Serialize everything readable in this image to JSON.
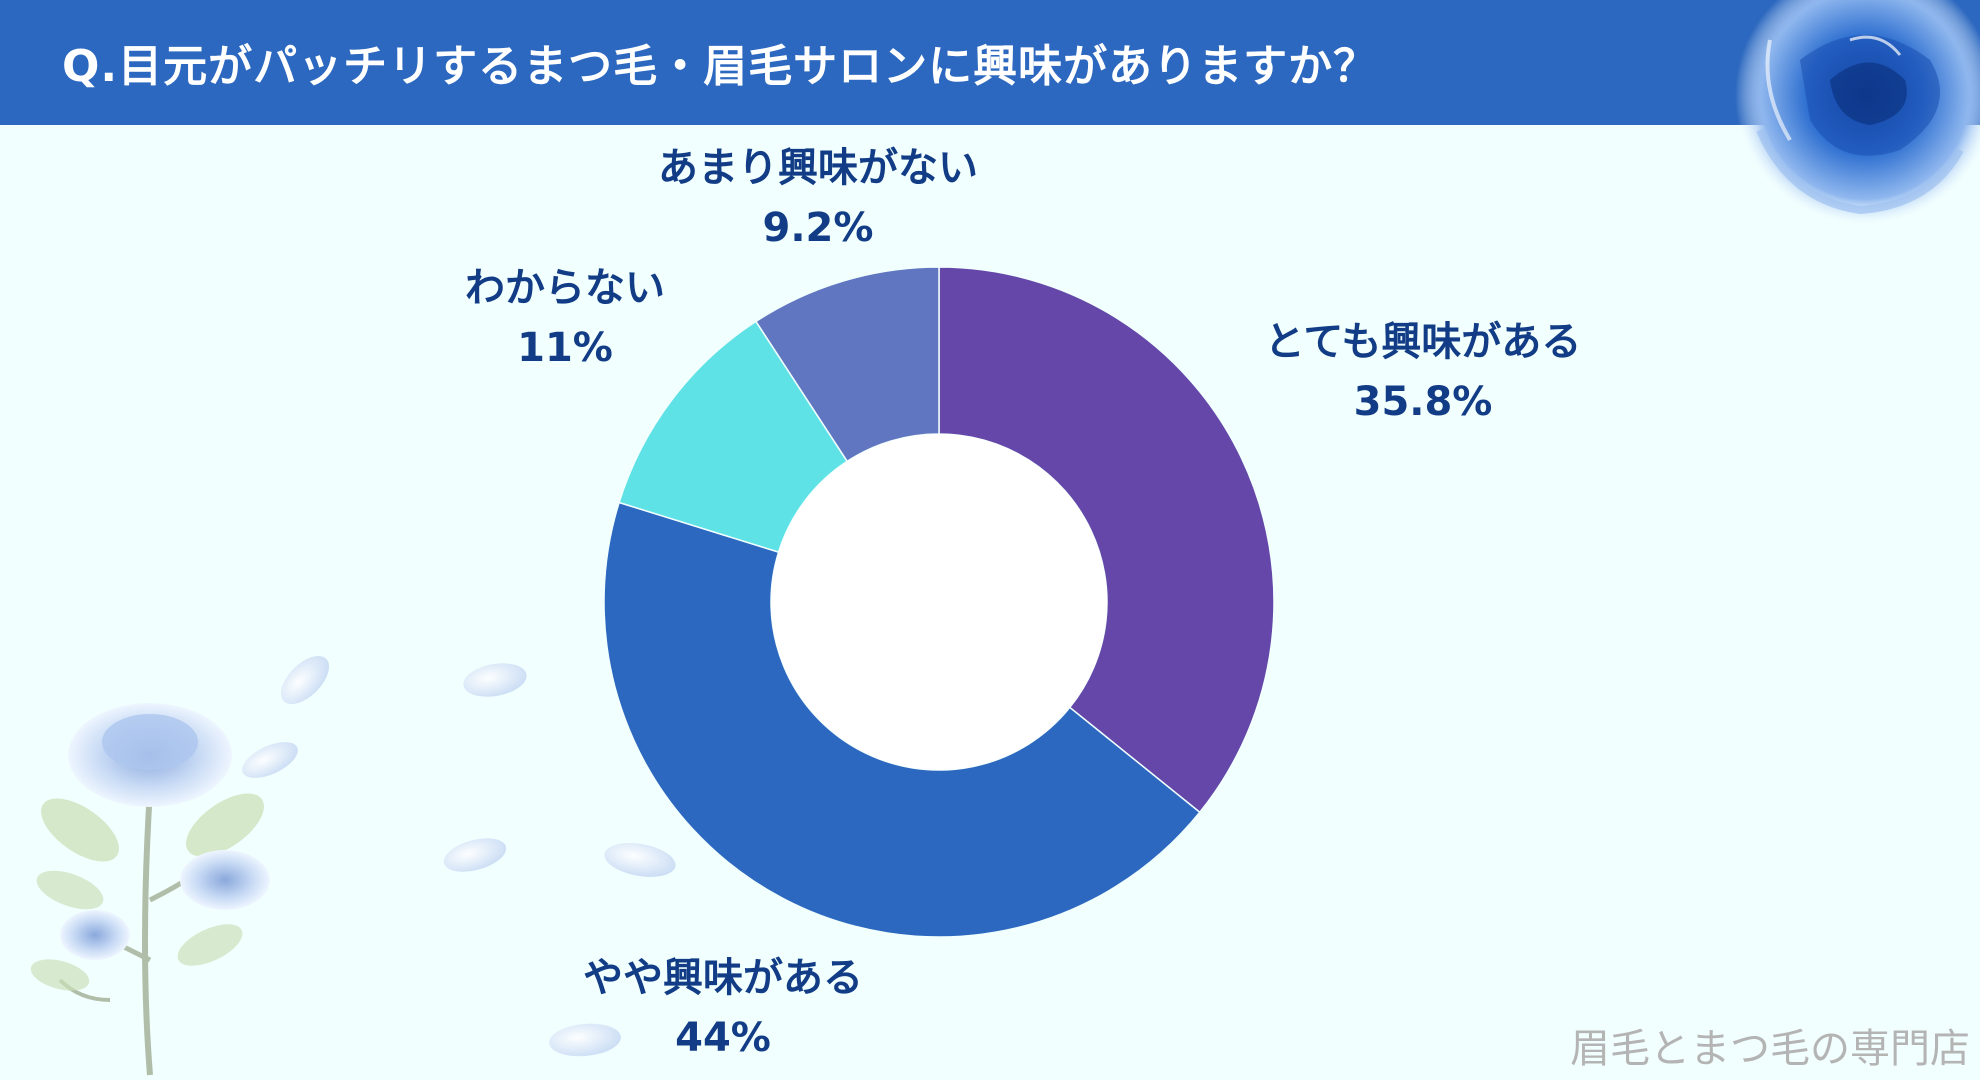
{
  "title": "Q.目元がパッチリするまつ毛・眉毛サロンに興味がありますか？",
  "watermark": "眉毛とまつ毛の専門店",
  "colors": {
    "header": "#2c68bf",
    "background": "#f1fffe",
    "label": "#123d86"
  },
  "chart_data": {
    "type": "pie",
    "donut": true,
    "slices": [
      {
        "label": "とても興味がある",
        "value": 35.8,
        "value_text": "35.8%",
        "color": "#6447a8"
      },
      {
        "label": "やや興味がある",
        "value": 44,
        "value_text": "44%",
        "color": "#2c68bf"
      },
      {
        "label": "わからない",
        "value": 11,
        "value_text": "11%",
        "color": "#5ee2e6"
      },
      {
        "label": "あまり興味がない",
        "value": 9.2,
        "value_text": "9.2%",
        "color": "#6176c0"
      }
    ],
    "start_angle": "12 o'clock",
    "direction": "clockwise"
  }
}
